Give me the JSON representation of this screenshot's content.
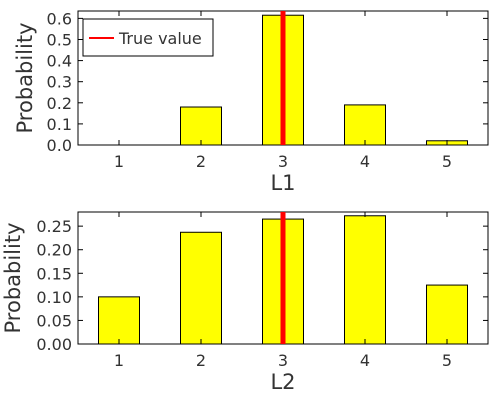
{
  "chart_data": [
    {
      "type": "bar",
      "categories": [
        "1",
        "2",
        "3",
        "4",
        "5"
      ],
      "values": [
        0.0,
        0.18,
        0.615,
        0.19,
        0.02
      ],
      "bar_color": "#ffff00",
      "true_value": 3,
      "true_value_color": "#ff0000",
      "xlabel": "L1",
      "ylabel": "Probability",
      "ylim": [
        0,
        0.635
      ],
      "yticks": [
        "0.0",
        "0.1",
        "0.2",
        "0.3",
        "0.4",
        "0.5",
        "0.6"
      ],
      "legend": {
        "label": "True value",
        "placement": "top-left"
      },
      "grid": false
    },
    {
      "type": "bar",
      "categories": [
        "1",
        "2",
        "3",
        "4",
        "5"
      ],
      "values": [
        0.1,
        0.237,
        0.265,
        0.272,
        0.125
      ],
      "bar_color": "#ffff00",
      "true_value": 3,
      "true_value_color": "#ff0000",
      "xlabel": "L2",
      "ylabel": "Probability",
      "ylim": [
        0,
        0.28
      ],
      "yticks": [
        "0.00",
        "0.05",
        "0.10",
        "0.15",
        "0.20",
        "0.25"
      ],
      "grid": false
    }
  ]
}
